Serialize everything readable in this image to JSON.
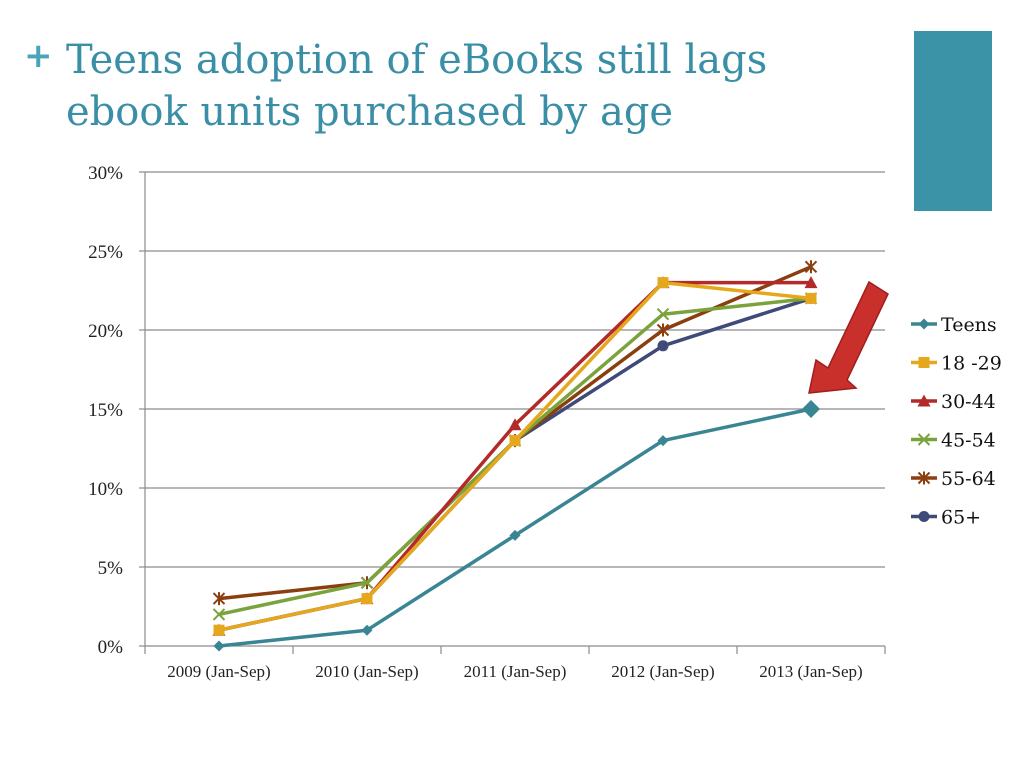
{
  "slide": {
    "plus_glyph": "+",
    "title_line1": "Teens adoption of eBooks still lags",
    "title_line2": "ebook units purchased by age",
    "accent_color": "#3a93a6"
  },
  "chart_data": {
    "type": "line",
    "categories": [
      "2009 (Jan-Sep)",
      "2010 (Jan-Sep)",
      "2011 (Jan-Sep)",
      "2012 (Jan-Sep)",
      "2013 (Jan-Sep)"
    ],
    "ylim": [
      0,
      30
    ],
    "yticks": [
      0,
      5,
      10,
      15,
      20,
      25,
      30
    ],
    "ytick_labels": [
      "0%",
      "5%",
      "10%",
      "15%",
      "20%",
      "25%",
      "30%"
    ],
    "grid": true,
    "legend_position": "right",
    "series": [
      {
        "name": "Teens",
        "values": [
          0,
          1,
          7,
          13,
          15
        ],
        "color": "#3a8594",
        "marker": "diamond"
      },
      {
        "name": "18 -29",
        "values": [
          1,
          3,
          13,
          23,
          22
        ],
        "color": "#e5a81c",
        "marker": "square"
      },
      {
        "name": "30-44",
        "values": [
          1,
          3,
          14,
          23,
          23
        ],
        "color": "#b22a2a",
        "marker": "triangle"
      },
      {
        "name": "45-54",
        "values": [
          2,
          4,
          13,
          21,
          22
        ],
        "color": "#7aa33c",
        "marker": "x"
      },
      {
        "name": "55-64",
        "values": [
          3,
          4,
          13,
          20,
          24
        ],
        "color": "#8b3f0f",
        "marker": "star"
      },
      {
        "name": "65+",
        "values": [
          1,
          3,
          13,
          19,
          22
        ],
        "color": "#3f4a78",
        "marker": "circle"
      }
    ],
    "annotation": {
      "type": "arrow",
      "color": "#c9302c",
      "points_to": {
        "series": "Teens",
        "category_index": 4
      }
    }
  }
}
